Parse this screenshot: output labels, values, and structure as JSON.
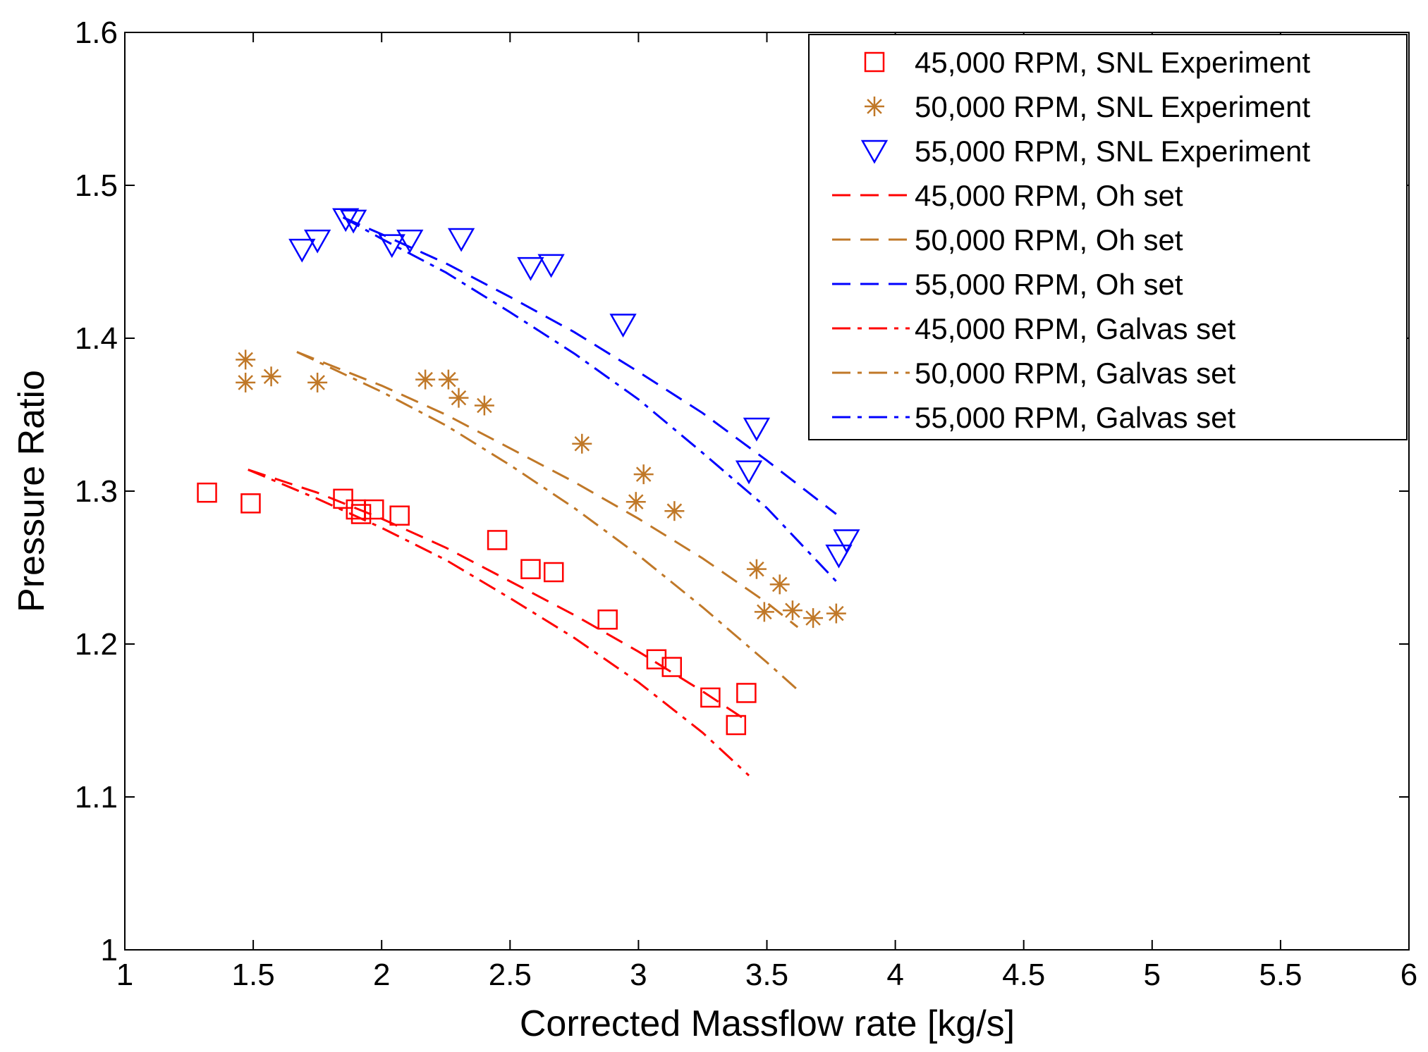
{
  "chart_data": {
    "type": "scatter",
    "title": "",
    "xlabel": "Corrected Massflow rate [kg/s]",
    "ylabel": "Pressure Ratio",
    "xlim": [
      1,
      6
    ],
    "ylim": [
      1,
      1.6
    ],
    "xticks": [
      1,
      1.5,
      2,
      2.5,
      3,
      3.5,
      4,
      4.5,
      5,
      5.5,
      6
    ],
    "xtick_labels": [
      "1",
      "1.5",
      "2",
      "2.5",
      "3",
      "3.5",
      "4",
      "4.5",
      "5",
      "5.5",
      "6"
    ],
    "yticks": [
      1,
      1.1,
      1.2,
      1.3,
      1.4,
      1.5,
      1.6
    ],
    "ytick_labels": [
      "1",
      "1.1",
      "1.2",
      "1.3",
      "1.4",
      "1.5",
      "1.6"
    ],
    "grid": false,
    "legend_position": "top-right",
    "series": [
      {
        "name": "45,000 RPM, SNL Experiment",
        "kind": "marker",
        "marker": "square",
        "color": "#ff0000",
        "x": [
          1.32,
          1.49,
          1.85,
          1.9,
          1.92,
          1.97,
          2.07,
          2.45,
          2.58,
          2.67,
          2.88,
          3.07,
          3.13,
          3.28,
          3.38,
          3.42
        ],
        "y": [
          1.299,
          1.292,
          1.295,
          1.288,
          1.285,
          1.288,
          1.284,
          1.268,
          1.249,
          1.247,
          1.216,
          1.19,
          1.185,
          1.165,
          1.147,
          1.168
        ]
      },
      {
        "name": "50,000 RPM, SNL Experiment",
        "kind": "marker",
        "marker": "asterisk",
        "color": "#c07828",
        "x": [
          1.47,
          1.47,
          1.57,
          1.75,
          2.17,
          2.26,
          2.3,
          2.4,
          2.78,
          2.99,
          3.02,
          3.14,
          3.46,
          3.49,
          3.55,
          3.6,
          3.68,
          3.77
        ],
        "y": [
          1.386,
          1.371,
          1.375,
          1.371,
          1.373,
          1.373,
          1.361,
          1.356,
          1.331,
          1.293,
          1.311,
          1.287,
          1.249,
          1.221,
          1.239,
          1.222,
          1.217,
          1.22
        ]
      },
      {
        "name": "55,000 RPM, SNL Experiment",
        "kind": "marker",
        "marker": "triangle-down",
        "color": "#0000ff",
        "x": [
          1.69,
          1.75,
          1.86,
          1.89,
          2.04,
          2.11,
          2.31,
          2.58,
          2.66,
          2.94,
          3.46,
          3.43,
          3.78,
          3.81
        ],
        "y": [
          1.458,
          1.464,
          1.478,
          1.477,
          1.461,
          1.464,
          1.465,
          1.446,
          1.448,
          1.409,
          1.341,
          1.313,
          1.258,
          1.268
        ]
      },
      {
        "name": "45,000 RPM, Oh set",
        "kind": "line",
        "dash": "dashed",
        "color": "#ff0000",
        "x": [
          1.48,
          1.75,
          2.0,
          2.25,
          2.5,
          2.75,
          3.0,
          3.25,
          3.43
        ],
        "y": [
          1.314,
          1.299,
          1.282,
          1.263,
          1.241,
          1.219,
          1.195,
          1.169,
          1.149
        ]
      },
      {
        "name": "50,000 RPM, Oh set",
        "kind": "line",
        "dash": "dashed",
        "color": "#c07828",
        "x": [
          1.67,
          2.0,
          2.25,
          2.5,
          2.75,
          3.0,
          3.25,
          3.5,
          3.62
        ],
        "y": [
          1.391,
          1.369,
          1.35,
          1.328,
          1.306,
          1.282,
          1.256,
          1.227,
          1.211
        ]
      },
      {
        "name": "55,000 RPM, Oh set",
        "kind": "line",
        "dash": "dashed",
        "color": "#0000ff",
        "x": [
          1.85,
          2.0,
          2.25,
          2.5,
          2.75,
          3.0,
          3.25,
          3.5,
          3.77
        ],
        "y": [
          1.479,
          1.468,
          1.449,
          1.427,
          1.404,
          1.378,
          1.351,
          1.32,
          1.285
        ]
      },
      {
        "name": "45,000 RPM, Galvas set",
        "kind": "line",
        "dash": "dashdot",
        "color": "#ff0000",
        "x": [
          1.48,
          1.75,
          2.0,
          2.25,
          2.5,
          2.75,
          3.0,
          3.25,
          3.43
        ],
        "y": [
          1.314,
          1.295,
          1.276,
          1.255,
          1.23,
          1.204,
          1.175,
          1.142,
          1.114
        ]
      },
      {
        "name": "50,000 RPM, Galvas set",
        "kind": "line",
        "dash": "dashdot",
        "color": "#c07828",
        "x": [
          1.67,
          2.0,
          2.25,
          2.5,
          2.75,
          3.0,
          3.25,
          3.5,
          3.62
        ],
        "y": [
          1.391,
          1.365,
          1.343,
          1.317,
          1.289,
          1.258,
          1.224,
          1.188,
          1.17
        ]
      },
      {
        "name": "55,000 RPM, Galvas set",
        "kind": "line",
        "dash": "dashdot",
        "color": "#0000ff",
        "x": [
          1.85,
          2.0,
          2.25,
          2.5,
          2.75,
          3.0,
          3.25,
          3.5,
          3.77
        ],
        "y": [
          1.479,
          1.465,
          1.443,
          1.417,
          1.39,
          1.36,
          1.325,
          1.289,
          1.241
        ]
      }
    ]
  }
}
